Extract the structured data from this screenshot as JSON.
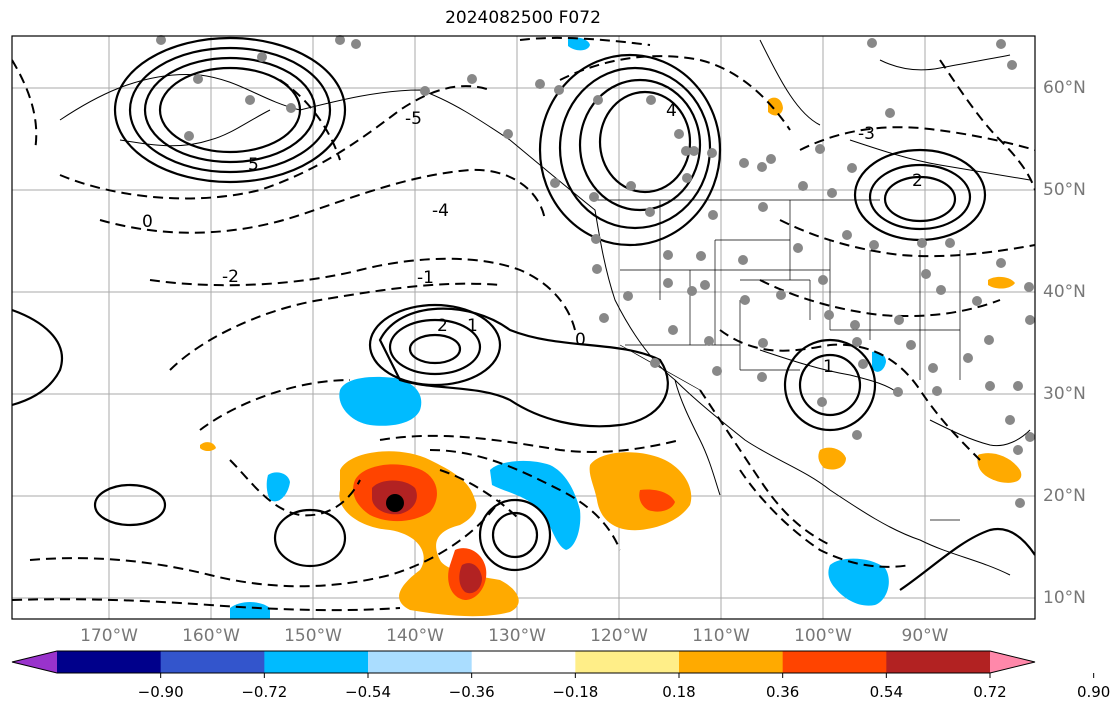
{
  "title": "2024082500 F072",
  "lat_labels": [
    "60°N",
    "50°N",
    "40°N",
    "30°N",
    "20°N",
    "10°N"
  ],
  "lon_labels": [
    "170°W",
    "160°W",
    "150°W",
    "140°W",
    "130°W",
    "120°W",
    "110°W",
    "100°W",
    "90°W"
  ],
  "colorbar": {
    "ticks": [
      "−0.90",
      "−0.72",
      "−0.54",
      "−0.36",
      "−0.18",
      "0.18",
      "0.36",
      "0.54",
      "0.72",
      "0.90"
    ],
    "colors": [
      "#9933cc",
      "#00008b",
      "#3355cc",
      "#00bbff",
      "#aaddff",
      "#ffffff",
      "#ffee88",
      "#ffaa00",
      "#ff4400",
      "#b22222",
      "#ff88aa"
    ]
  },
  "contour_labels": [
    "0",
    "-2",
    "-4",
    "-1",
    "2",
    "1",
    "4",
    "5",
    "-5",
    "-3",
    "0",
    "2",
    "1"
  ],
  "colors": {
    "positive_shade": "#ffaa00",
    "strong_positive": "#ff4400",
    "extreme_positive": "#b22222",
    "negative_shade": "#00bbff"
  }
}
